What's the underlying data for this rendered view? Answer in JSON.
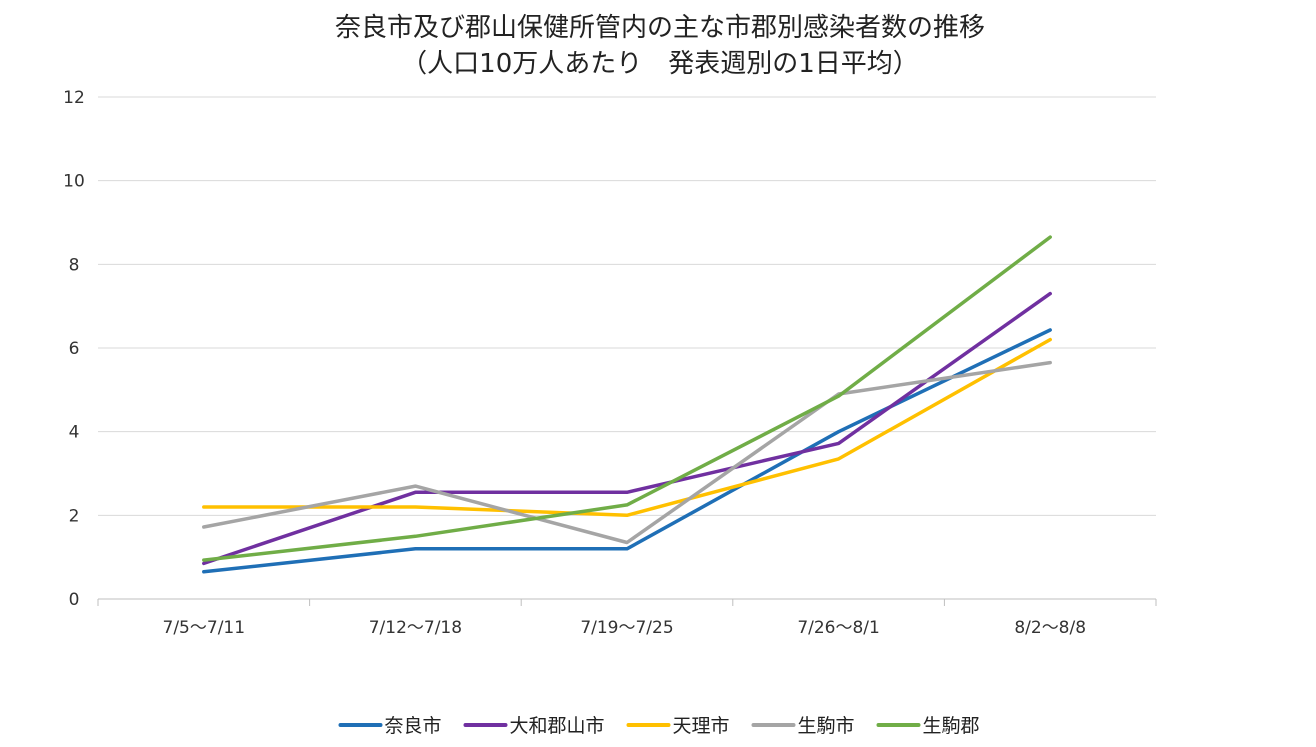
{
  "chart_data": {
    "type": "line",
    "title": "奈良市及び郡山保健所管内の主な市郡別感染者数の推移",
    "subtitle": "（人口10万人あたり　発表週別の1日平均）",
    "categories": [
      "7/5～7/11",
      "7/12～7/18",
      "7/19～7/25",
      "7/26～8/1",
      "8/2～8/8"
    ],
    "y_ticks": [
      "0",
      "2",
      "4",
      "6",
      "8",
      "10",
      "12"
    ],
    "ylim": [
      0,
      12
    ],
    "grid": true,
    "legend_position": "bottom",
    "series": [
      {
        "name": "奈良市",
        "color": "#1f6fb6",
        "values": [
          0.65,
          1.2,
          1.2,
          4.0,
          6.43
        ]
      },
      {
        "name": "大和郡山市",
        "color": "#7030a0",
        "values": [
          0.85,
          2.55,
          2.55,
          3.72,
          7.3
        ]
      },
      {
        "name": "天理市",
        "color": "#ffc000",
        "values": [
          2.2,
          2.2,
          2.0,
          3.35,
          6.2
        ]
      },
      {
        "name": "生駒市",
        "color": "#a5a5a5",
        "values": [
          1.72,
          2.7,
          1.35,
          4.9,
          5.65
        ]
      },
      {
        "name": "生駒郡",
        "color": "#70ad47",
        "values": [
          0.93,
          1.5,
          2.25,
          4.85,
          8.65
        ]
      }
    ]
  }
}
